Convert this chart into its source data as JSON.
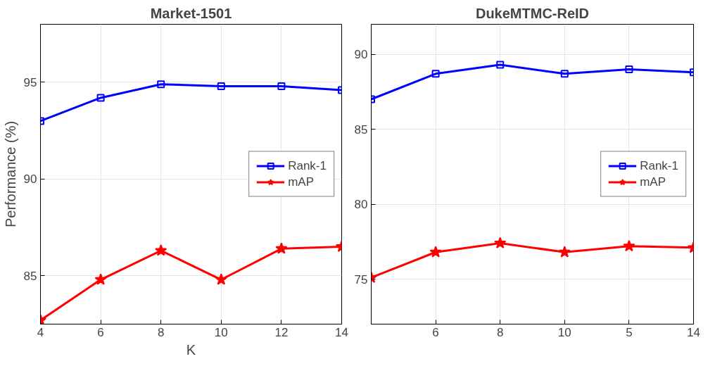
{
  "chart_data": [
    {
      "type": "line",
      "title": "Market-1501",
      "xlabel": "K",
      "ylabel": "Performance (%)",
      "x": [
        4,
        6,
        8,
        10,
        12,
        14
      ],
      "xlim": [
        4,
        14
      ],
      "xticks": [
        4,
        6,
        8,
        10,
        12,
        14
      ],
      "ylim": [
        82.5,
        98
      ],
      "yticks": [
        85,
        90,
        95
      ],
      "grid": true,
      "legend": "right",
      "line_style": "solid",
      "series": [
        {
          "name": "Rank-1",
          "color": "#0000ff",
          "marker": "square",
          "values": [
            93.0,
            94.2,
            94.9,
            94.8,
            94.8,
            94.6
          ]
        },
        {
          "name": "mAP",
          "color": "#ff0000",
          "marker": "star",
          "values": [
            82.7,
            84.8,
            86.3,
            84.8,
            86.4,
            86.5
          ]
        }
      ]
    },
    {
      "type": "line",
      "title": "DukeMTMC-ReID",
      "categories": [
        null,
        "6",
        "8",
        "10",
        "5",
        "14"
      ],
      "ylim": [
        72,
        92
      ],
      "yticks": [
        75,
        80,
        85,
        90
      ],
      "grid": true,
      "legend": "right",
      "line_style": "solid",
      "series": [
        {
          "name": "Rank-1",
          "color": "#0000ff",
          "marker": "square",
          "values": [
            87.0,
            88.7,
            89.3,
            88.7,
            89.0,
            88.8
          ]
        },
        {
          "name": "mAP",
          "color": "#ff0000",
          "marker": "star",
          "values": [
            75.1,
            76.8,
            77.4,
            76.8,
            77.2,
            77.1
          ]
        }
      ]
    }
  ]
}
